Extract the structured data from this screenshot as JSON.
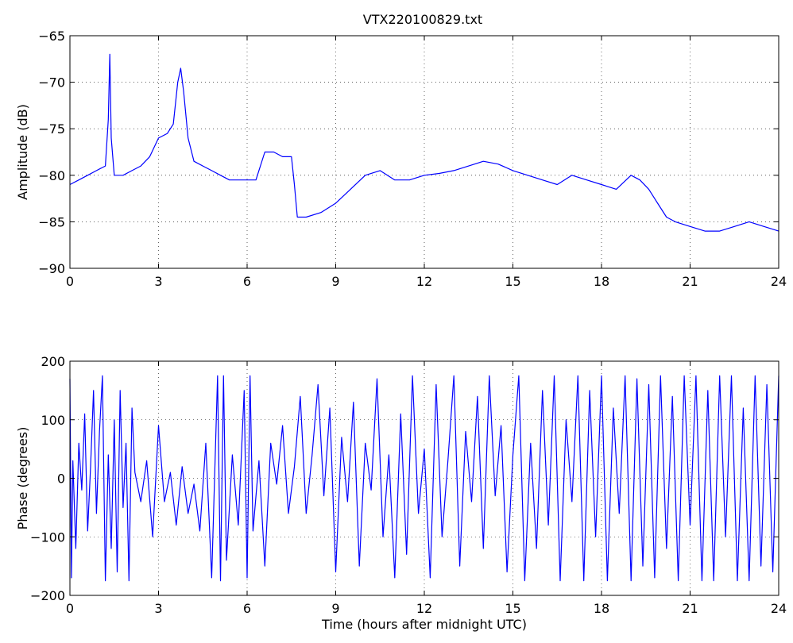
{
  "title": "VTX220100829.txt",
  "chart_data": [
    {
      "type": "line",
      "title": "VTX220100829.txt",
      "xlabel": "",
      "ylabel": "Amplitude (dB)",
      "xlim": [
        0,
        24
      ],
      "ylim": [
        -90,
        -65
      ],
      "xticks": [
        0,
        3,
        6,
        9,
        12,
        15,
        18,
        21,
        24
      ],
      "yticks": [
        -90,
        -85,
        -80,
        -75,
        -70,
        -65
      ],
      "grid": true,
      "line_color": "#0000ff",
      "series": [
        {
          "x": [
            0,
            0.3,
            0.6,
            0.9,
            1.2,
            1.3,
            1.35,
            1.4,
            1.5,
            1.8,
            2.1,
            2.4,
            2.7,
            3.0,
            3.3,
            3.5,
            3.65,
            3.75,
            3.85,
            4.0,
            4.2,
            4.5,
            4.8,
            5.1,
            5.4,
            5.7,
            6.0,
            6.3,
            6.6,
            6.9,
            7.2,
            7.5,
            7.6,
            7.7,
            8.0,
            8.5,
            9.0,
            9.5,
            10.0,
            10.5,
            11.0,
            11.5,
            12.0,
            12.5,
            13.0,
            13.5,
            14.0,
            14.5,
            15.0,
            15.5,
            16.0,
            16.5,
            17.0,
            17.5,
            18.0,
            18.5,
            19.0,
            19.3,
            19.6,
            19.9,
            20.2,
            20.5,
            21.0,
            21.5,
            22.0,
            22.5,
            23.0,
            23.5,
            24.0
          ],
          "y": [
            -81,
            -80.5,
            -80,
            -79.5,
            -79,
            -74,
            -67,
            -76,
            -80,
            -80,
            -79.5,
            -79,
            -78,
            -76,
            -75.5,
            -74.5,
            -70,
            -68.5,
            -71,
            -76,
            -78.5,
            -79,
            -79.5,
            -80,
            -80.5,
            -80.5,
            -80.5,
            -80.5,
            -77.5,
            -77.5,
            -78,
            -78,
            -81,
            -84.5,
            -84.5,
            -84,
            -83,
            -81.5,
            -80,
            -79.5,
            -80.5,
            -80.5,
            -80,
            -79.8,
            -79.5,
            -79,
            -78.5,
            -78.8,
            -79.5,
            -80,
            -80.5,
            -81,
            -80,
            -80.5,
            -81,
            -81.5,
            -80,
            -80.5,
            -81.5,
            -83,
            -84.5,
            -85,
            -85.5,
            -86,
            -86,
            -85.5,
            -85,
            -85.5,
            -86
          ]
        }
      ]
    },
    {
      "type": "line",
      "title": "",
      "xlabel": "Time (hours after midnight UTC)",
      "ylabel": "Phase (degrees)",
      "xlim": [
        0,
        24
      ],
      "ylim": [
        -200,
        200
      ],
      "xticks": [
        0,
        3,
        6,
        9,
        12,
        15,
        18,
        21,
        24
      ],
      "yticks": [
        -200,
        -100,
        0,
        100,
        200
      ],
      "grid": true,
      "line_color": "#0000ff",
      "series": [
        {
          "x": [
            0,
            0.05,
            0.1,
            0.2,
            0.3,
            0.4,
            0.5,
            0.6,
            0.7,
            0.8,
            0.9,
            1.0,
            1.1,
            1.2,
            1.3,
            1.4,
            1.5,
            1.6,
            1.7,
            1.8,
            1.9,
            2.0,
            2.1,
            2.2,
            2.4,
            2.6,
            2.8,
            3.0,
            3.2,
            3.4,
            3.6,
            3.8,
            4.0,
            4.2,
            4.4,
            4.6,
            4.8,
            5.0,
            5.1,
            5.2,
            5.3,
            5.5,
            5.7,
            5.9,
            6.0,
            6.1,
            6.2,
            6.4,
            6.6,
            6.8,
            7.0,
            7.2,
            7.4,
            7.6,
            7.8,
            8.0,
            8.2,
            8.4,
            8.6,
            8.8,
            9.0,
            9.2,
            9.4,
            9.6,
            9.8,
            10.0,
            10.2,
            10.4,
            10.6,
            10.8,
            11.0,
            11.2,
            11.4,
            11.6,
            11.8,
            12.0,
            12.2,
            12.4,
            12.6,
            12.8,
            13.0,
            13.2,
            13.4,
            13.6,
            13.8,
            14.0,
            14.2,
            14.4,
            14.6,
            14.8,
            15.0,
            15.2,
            15.4,
            15.6,
            15.8,
            16.0,
            16.2,
            16.4,
            16.6,
            16.8,
            17.0,
            17.2,
            17.4,
            17.6,
            17.8,
            18.0,
            18.2,
            18.4,
            18.6,
            18.8,
            19.0,
            19.2,
            19.4,
            19.6,
            19.8,
            20.0,
            20.2,
            20.4,
            20.6,
            20.8,
            21.0,
            21.2,
            21.4,
            21.6,
            21.8,
            22.0,
            22.2,
            22.4,
            22.6,
            22.8,
            23.0,
            23.2,
            23.4,
            23.6,
            23.8,
            24.0
          ],
          "y": [
            170,
            -170,
            30,
            -120,
            60,
            -20,
            110,
            -90,
            20,
            150,
            -60,
            80,
            175,
            -175,
            40,
            -120,
            100,
            -160,
            150,
            -50,
            60,
            -175,
            120,
            10,
            -40,
            30,
            -100,
            90,
            -40,
            10,
            -80,
            20,
            -60,
            -10,
            -90,
            60,
            -170,
            175,
            -175,
            175,
            -140,
            40,
            -80,
            150,
            -170,
            175,
            -90,
            30,
            -150,
            60,
            -10,
            90,
            -60,
            20,
            140,
            -60,
            40,
            160,
            -30,
            120,
            -160,
            70,
            -40,
            130,
            -150,
            60,
            -20,
            170,
            -100,
            40,
            -170,
            110,
            -130,
            175,
            -60,
            50,
            -170,
            160,
            -100,
            30,
            175,
            -150,
            80,
            -40,
            140,
            -120,
            175,
            -30,
            90,
            -160,
            40,
            175,
            -175,
            60,
            -120,
            150,
            -80,
            175,
            -175,
            100,
            -40,
            175,
            -175,
            150,
            -100,
            175,
            -175,
            120,
            -60,
            175,
            -175,
            170,
            -150,
            160,
            -170,
            175,
            -120,
            140,
            -175,
            175,
            -80,
            175,
            -175,
            150,
            -175,
            175,
            -100,
            175,
            -175,
            120,
            -175,
            175,
            -150,
            160,
            -160,
            175
          ]
        }
      ]
    }
  ]
}
